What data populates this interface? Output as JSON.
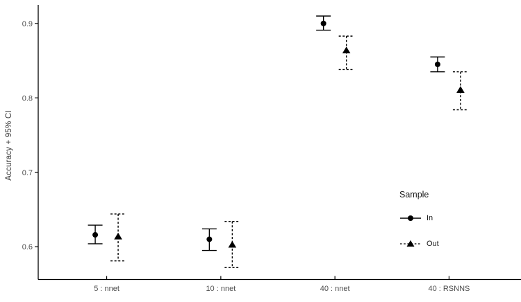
{
  "chart_data": {
    "type": "scatter",
    "subtype": "point-with-errorbar",
    "title": "",
    "xlabel": "",
    "ylabel": "Accuracy + 95% CI",
    "categories": [
      "5 : nnet",
      "10 : nnet",
      "40 : nnet",
      "40 : RSNNS"
    ],
    "y_ticks": [
      0.6,
      0.7,
      0.8,
      0.9
    ],
    "y_tick_labels": [
      "0.6",
      "0.7",
      "0.8",
      "0.9"
    ],
    "ylim": [
      0.556,
      0.925
    ],
    "grid": false,
    "legend": {
      "title": "Sample",
      "position": "inside-right",
      "entries": [
        {
          "label": "In",
          "marker": "circle",
          "line_style": "solid"
        },
        {
          "label": "Out",
          "marker": "triangle",
          "line_style": "dashed"
        }
      ]
    },
    "series": [
      {
        "name": "In",
        "marker": "circle",
        "line_style": "solid",
        "points": [
          {
            "category": "5 : nnet",
            "mean": 0.616,
            "lo": 0.604,
            "hi": 0.629
          },
          {
            "category": "10 : nnet",
            "mean": 0.61,
            "lo": 0.595,
            "hi": 0.624
          },
          {
            "category": "40 : nnet",
            "mean": 0.9,
            "lo": 0.891,
            "hi": 0.91
          },
          {
            "category": "40 : RSNNS",
            "mean": 0.845,
            "lo": 0.835,
            "hi": 0.855
          }
        ]
      },
      {
        "name": "Out",
        "marker": "triangle",
        "line_style": "dashed",
        "points": [
          {
            "category": "5 : nnet",
            "mean": 0.614,
            "lo": 0.581,
            "hi": 0.644
          },
          {
            "category": "10 : nnet",
            "mean": 0.603,
            "lo": 0.572,
            "hi": 0.634
          },
          {
            "category": "40 : nnet",
            "mean": 0.864,
            "lo": 0.838,
            "hi": 0.883
          },
          {
            "category": "40 : RSNNS",
            "mean": 0.811,
            "lo": 0.784,
            "hi": 0.835
          }
        ]
      }
    ],
    "colors": {
      "geom": "#000000",
      "axis_line": "#000000",
      "tick_label": "#4d4d4d",
      "axis_title": "#333333",
      "legend_text": "#1a1a1a",
      "background": "#ffffff"
    }
  }
}
